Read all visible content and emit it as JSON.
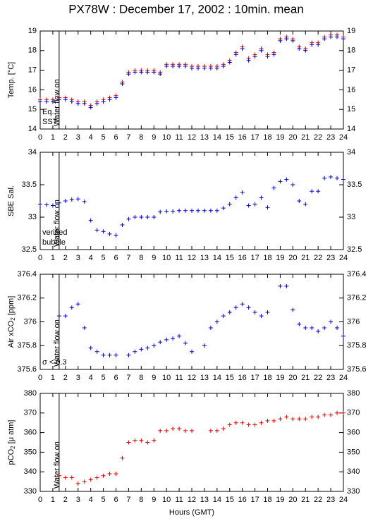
{
  "chart_data": [
    {
      "type": "scatter",
      "title": "PX78W : December 17, 2002 : 10min. mean",
      "ylabel": "Temp. [°C]",
      "annotation": "Water flow on",
      "vline": 1.5,
      "x": [
        0,
        0.5,
        1,
        1.5,
        2,
        2.5,
        3,
        3.5,
        4,
        4.5,
        5,
        5.5,
        6,
        6.5,
        7,
        7.5,
        8,
        8.5,
        9,
        9.5,
        10,
        10.5,
        11,
        11.5,
        12,
        12.5,
        13,
        13.5,
        14,
        14.5,
        15,
        15.5,
        16,
        16.5,
        17,
        17.5,
        18,
        18.5,
        19,
        19.5,
        20,
        20.5,
        21,
        21.5,
        22,
        22.5,
        23,
        23.5,
        24
      ],
      "series": [
        {
          "name": "Eq.",
          "color": "#dd0000",
          "values": [
            15.5,
            15.5,
            15.5,
            15.6,
            15.6,
            15.5,
            15.4,
            15.4,
            15.2,
            15.4,
            15.5,
            15.6,
            15.7,
            16.4,
            16.9,
            17.0,
            17.0,
            17.0,
            17.0,
            16.9,
            17.3,
            17.3,
            17.3,
            17.3,
            17.2,
            17.2,
            17.2,
            17.2,
            17.2,
            17.3,
            17.5,
            17.9,
            18.2,
            17.6,
            17.8,
            18.1,
            17.8,
            17.9,
            18.6,
            18.7,
            18.6,
            18.2,
            18.1,
            18.4,
            18.4,
            18.7,
            18.8,
            18.8,
            18.7
          ]
        },
        {
          "name": "SST",
          "color": "#0000cc",
          "values": [
            15.4,
            15.4,
            15.4,
            15.5,
            15.5,
            15.4,
            15.3,
            15.3,
            15.1,
            15.3,
            15.4,
            15.5,
            15.6,
            16.3,
            16.8,
            16.9,
            16.9,
            16.9,
            16.9,
            16.8,
            17.2,
            17.2,
            17.2,
            17.2,
            17.1,
            17.1,
            17.1,
            17.1,
            17.1,
            17.2,
            17.4,
            17.8,
            18.1,
            17.5,
            17.7,
            18.0,
            17.7,
            17.8,
            18.5,
            18.6,
            18.5,
            18.1,
            18.0,
            18.3,
            18.3,
            18.6,
            18.7,
            18.7,
            18.6
          ]
        }
      ],
      "xlim": [
        0,
        24
      ],
      "xticks": [
        0,
        1,
        2,
        3,
        4,
        5,
        6,
        7,
        8,
        9,
        10,
        11,
        12,
        13,
        14,
        15,
        16,
        17,
        18,
        19,
        20,
        21,
        22,
        23,
        24
      ],
      "ylim": [
        14,
        19
      ],
      "yticks": [
        14,
        15,
        16,
        17,
        18,
        19
      ]
    },
    {
      "type": "scatter",
      "ylabel": "SBE Sal.",
      "annotation": "Water flow on",
      "vline": 1.5,
      "x": [
        0,
        0.5,
        1,
        1.5,
        2,
        2.5,
        3,
        3.5,
        4,
        4.5,
        5,
        5.5,
        6,
        6.5,
        7,
        7.5,
        8,
        8.5,
        9,
        9.5,
        10,
        10.5,
        11,
        11.5,
        12,
        12.5,
        13,
        13.5,
        14,
        14.5,
        15,
        15.5,
        16,
        16.5,
        17,
        17.5,
        18,
        18.5,
        19,
        19.5,
        20,
        20.5,
        21,
        21.5,
        22,
        22.5,
        23,
        23.5,
        24
      ],
      "series": [
        {
          "name": "verified",
          "color": "#0000cc",
          "values": [
            33.2,
            33.19,
            33.18,
            33.22,
            33.25,
            33.27,
            33.28,
            33.24,
            32.95,
            32.8,
            32.78,
            32.74,
            32.72,
            32.88,
            32.97,
            33.0,
            33.0,
            33.0,
            33.0,
            33.08,
            33.09,
            33.09,
            33.1,
            33.1,
            33.1,
            33.1,
            33.1,
            33.1,
            33.1,
            33.14,
            33.2,
            33.3,
            33.38,
            33.18,
            33.2,
            33.3,
            33.15,
            33.45,
            33.55,
            33.58,
            33.5,
            33.25,
            33.2,
            33.4,
            33.4,
            33.6,
            33.62,
            33.6,
            33.58
          ]
        },
        {
          "name": "bubble",
          "color": "#cc00cc",
          "values": [
            null,
            null,
            null,
            null,
            null,
            null,
            null,
            null,
            null,
            null,
            null,
            null,
            null,
            null,
            null,
            null,
            null,
            null,
            null,
            null,
            null,
            null,
            null,
            null,
            null,
            null,
            null,
            null,
            null,
            null,
            null,
            null,
            null,
            null,
            null,
            null,
            null,
            null,
            null,
            null,
            null,
            null,
            null,
            null,
            null,
            null,
            null,
            null,
            null
          ]
        }
      ],
      "xlim": [
        0,
        24
      ],
      "xticks": [
        0,
        1,
        2,
        3,
        4,
        5,
        6,
        7,
        8,
        9,
        10,
        11,
        12,
        13,
        14,
        15,
        16,
        17,
        18,
        19,
        20,
        21,
        22,
        23,
        24
      ],
      "ylim": [
        32.5,
        34
      ],
      "yticks": [
        32.5,
        33,
        33.5,
        34
      ]
    },
    {
      "type": "scatter",
      "ylabel": "Air xCO",
      "ylabel_sub": "2",
      "ylabel_tail": " [ppm]",
      "annotation": "Water flow on",
      "vline": 1.5,
      "x": [
        0,
        0.5,
        1,
        1.5,
        2,
        2.5,
        3,
        3.5,
        4,
        4.5,
        5,
        5.5,
        6,
        6.5,
        7,
        7.5,
        8,
        8.5,
        9,
        9.5,
        10,
        10.5,
        11,
        11.5,
        12,
        12.5,
        13,
        13.5,
        14,
        14.5,
        15,
        15.5,
        16,
        16.5,
        17,
        17.5,
        18,
        18.5,
        19,
        19.5,
        20,
        20.5,
        21,
        21.5,
        22,
        22.5,
        23,
        23.5,
        24
      ],
      "series": [
        {
          "name": "σ < 0.3",
          "color": "#0000cc",
          "label_color": "#cc00cc",
          "values": [
            null,
            null,
            null,
            376.05,
            376.05,
            376.12,
            376.15,
            375.95,
            375.78,
            375.75,
            375.72,
            375.72,
            375.72,
            null,
            375.72,
            375.75,
            375.77,
            375.78,
            375.8,
            375.83,
            375.85,
            375.86,
            375.88,
            375.82,
            375.75,
            null,
            375.8,
            375.95,
            376.0,
            376.05,
            376.08,
            376.12,
            376.15,
            376.12,
            376.08,
            376.05,
            376.08,
            null,
            376.3,
            376.3,
            376.1,
            375.98,
            375.95,
            375.95,
            375.92,
            375.95,
            376.0,
            375.95,
            375.88
          ]
        }
      ],
      "xlim": [
        0,
        24
      ],
      "xticks": [
        0,
        1,
        2,
        3,
        4,
        5,
        6,
        7,
        8,
        9,
        10,
        11,
        12,
        13,
        14,
        15,
        16,
        17,
        18,
        19,
        20,
        21,
        22,
        23,
        24
      ],
      "ylim": [
        375.6,
        376.4
      ],
      "yticks": [
        375.6,
        375.8,
        376,
        376.2,
        376.4
      ]
    },
    {
      "type": "scatter",
      "ylabel": "pCO",
      "ylabel_sub": "2",
      "ylabel_tail": " [μ atm]",
      "annotation": "Water flow on",
      "vline": 1.5,
      "xlabel": "Hours (GMT)",
      "x": [
        0,
        0.5,
        1,
        1.5,
        2,
        2.5,
        3,
        3.5,
        4,
        4.5,
        5,
        5.5,
        6,
        6.5,
        7,
        7.5,
        8,
        8.5,
        9,
        9.5,
        10,
        10.5,
        11,
        11.5,
        12,
        12.5,
        13,
        13.5,
        14,
        14.5,
        15,
        15.5,
        16,
        16.5,
        17,
        17.5,
        18,
        18.5,
        19,
        19.5,
        20,
        20.5,
        21,
        21.5,
        22,
        22.5,
        23,
        23.5,
        24
      ],
      "series": [
        {
          "color": "#dd0000",
          "values": [
            null,
            null,
            null,
            338,
            337,
            337,
            334,
            335,
            336,
            337,
            338,
            339,
            339,
            347,
            355,
            356,
            356,
            355,
            356,
            361,
            361,
            362,
            362,
            361,
            361,
            null,
            null,
            361,
            361,
            362,
            364,
            365,
            365,
            364,
            364,
            365,
            366,
            366,
            367,
            368,
            367,
            367,
            367,
            368,
            368,
            369,
            369,
            370,
            370
          ]
        }
      ],
      "xlim": [
        0,
        24
      ],
      "xticks": [
        0,
        1,
        2,
        3,
        4,
        5,
        6,
        7,
        8,
        9,
        10,
        11,
        12,
        13,
        14,
        15,
        16,
        17,
        18,
        19,
        20,
        21,
        22,
        23,
        24
      ],
      "ylim": [
        330,
        380
      ],
      "yticks": [
        330,
        340,
        350,
        360,
        370,
        380
      ]
    }
  ]
}
